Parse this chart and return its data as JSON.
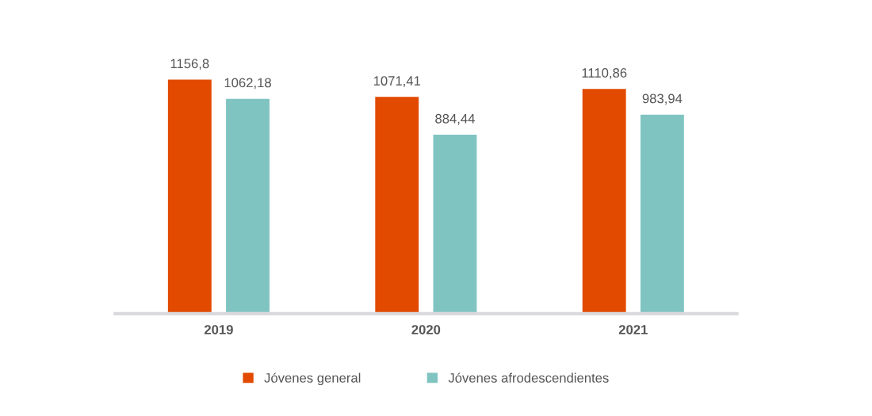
{
  "chart_data": {
    "type": "bar",
    "categories": [
      "2019",
      "2020",
      "2021"
    ],
    "series": [
      {
        "name": "Jóvenes general",
        "color": "#e24a00",
        "values": [
          1156.8,
          1071.41,
          1110.86
        ],
        "value_labels": [
          "1156,8",
          "1071,41",
          "1110,86"
        ]
      },
      {
        "name": "Jóvenes afrodescendientes",
        "color": "#80c4c2",
        "values": [
          1062.18,
          884.44,
          983.94
        ],
        "value_labels": [
          "1062,18",
          "884,44",
          "983,94"
        ]
      }
    ],
    "grid": false,
    "legend": "bottom"
  }
}
